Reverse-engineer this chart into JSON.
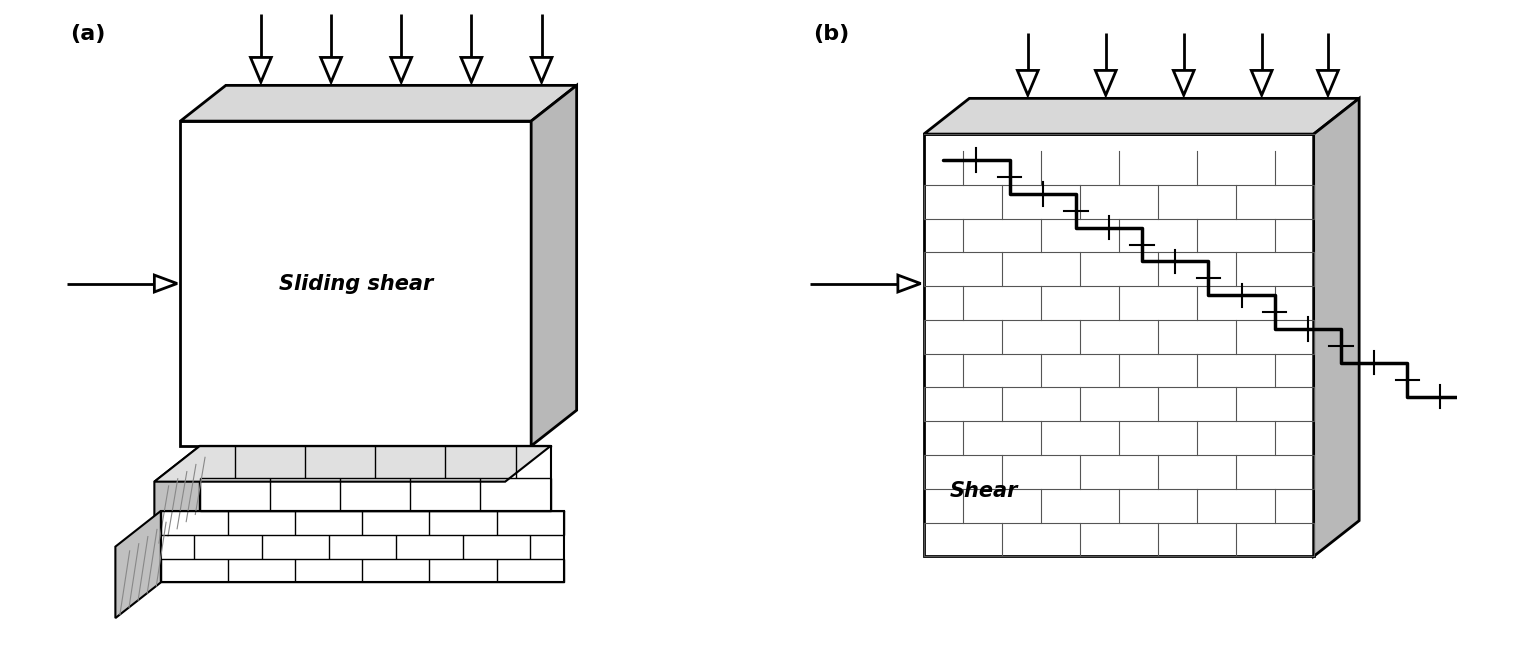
{
  "bg_color": "#ffffff",
  "line_color": "#000000",
  "label_a": "(a)",
  "label_b": "(b)",
  "text_a": "Sliding shear",
  "text_b": "Shear",
  "fig_width": 15.2,
  "fig_height": 6.58
}
